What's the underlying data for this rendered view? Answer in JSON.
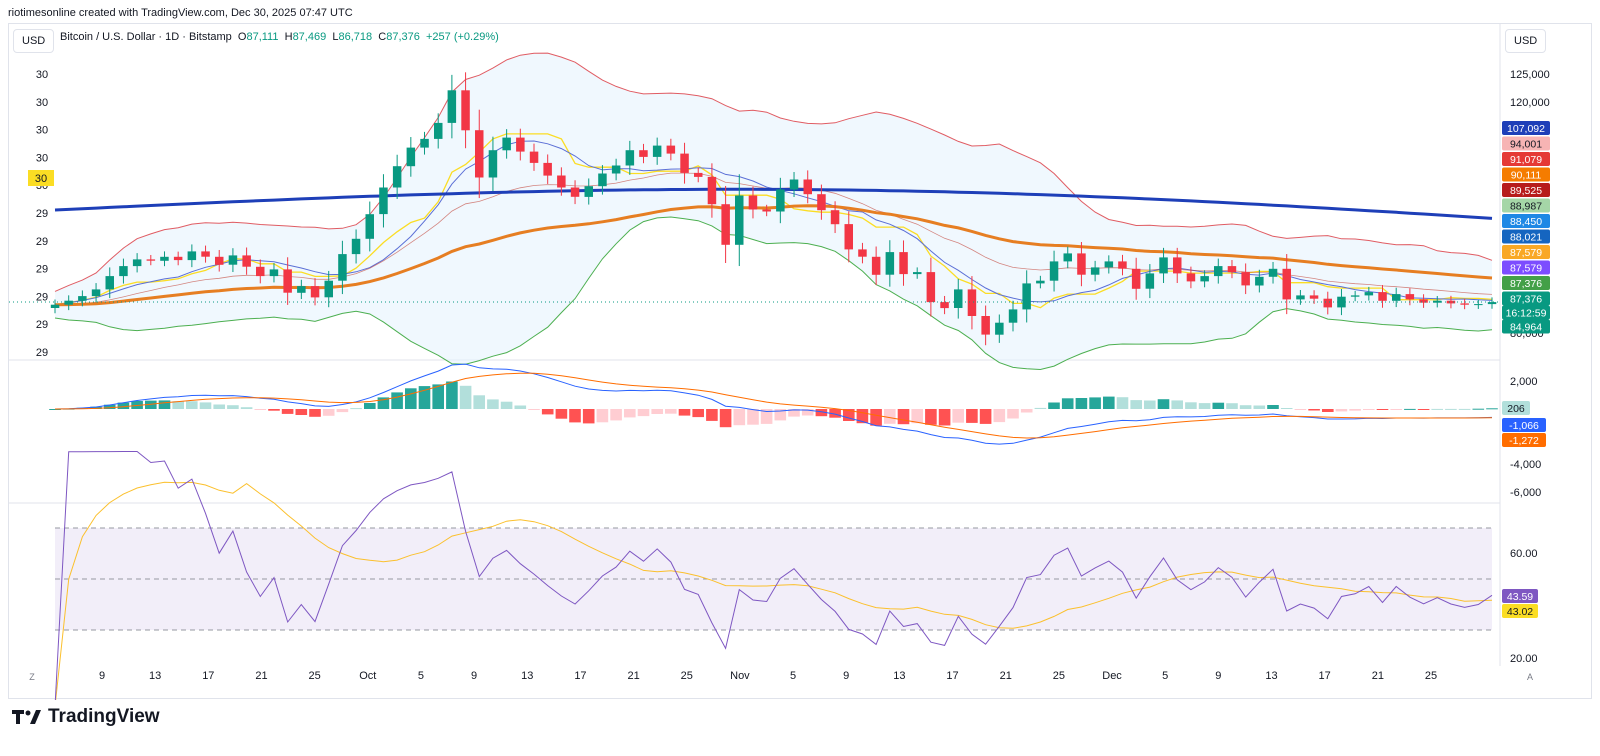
{
  "caption": "riotimesonline created with TradingView.com, Dec 30, 2025 07:47 UTC",
  "header": {
    "currency_left": "USD",
    "currency_right": "USD",
    "symbol": "Bitcoin / U.S. Dollar · 1D · Bitstamp",
    "open_label": "O",
    "open": "87,111",
    "high_label": "H",
    "high": "87,469",
    "low_label": "L",
    "low": "86,718",
    "close_label": "C",
    "close": "87,376",
    "change": "+257 (+0.29%)"
  },
  "brand": "TradingView",
  "colors": {
    "up": "#089981",
    "down": "#f23645",
    "sma_long": "#1e3fb8",
    "ema_mid": "#e67e22",
    "bb_upper": "#e05c63",
    "bb_lower": "#4caf50",
    "tenkan": "#fbdd24",
    "rsi": "#7e57c2"
  },
  "chart_data": {
    "type": "candlestick",
    "x_ticks": [
      "9",
      "13",
      "17",
      "21",
      "25",
      "Oct",
      "5",
      "9",
      "13",
      "17",
      "21",
      "25",
      "Nov",
      "5",
      "9",
      "13",
      "17",
      "21",
      "25",
      "Dec",
      "5",
      "9",
      "13",
      "17",
      "21",
      "25"
    ],
    "left_axis_ticks": [
      "30",
      "30",
      "30",
      "30",
      "30",
      "29",
      "29",
      "29",
      "29",
      "29",
      "29"
    ],
    "left_axis_marker": "30",
    "price_axis_ticks": [
      "125,000",
      "120,000",
      "80,000"
    ],
    "price_labels": [
      {
        "value": "107,092",
        "color": "#1e3fb8"
      },
      {
        "value": "94,001",
        "color": "#f7b4b4"
      },
      {
        "value": "91,079",
        "color": "#e53935"
      },
      {
        "value": "90,111",
        "color": "#f57c00"
      },
      {
        "value": "89,525",
        "color": "#b71c1c"
      },
      {
        "value": "88,987",
        "color": "#a5d6a7"
      },
      {
        "value": "88,450",
        "color": "#1e88e5"
      },
      {
        "value": "88,021",
        "color": "#1565c0"
      },
      {
        "value": "87,579",
        "color": "#f9a825"
      },
      {
        "value": "87,579",
        "color": "#7c4dff"
      },
      {
        "value": "87,376",
        "color": "#43a047"
      },
      {
        "value": "87,376",
        "color": "#089981"
      },
      {
        "value": "16:12:59",
        "color": "#089981"
      },
      {
        "value": "84,964",
        "color": "#089981"
      }
    ],
    "closes": [
      87.0,
      87.6,
      88.3,
      89.3,
      91.3,
      92.8,
      93.8,
      93.6,
      94.2,
      93.7,
      95.0,
      94.2,
      93.0,
      94.4,
      92.7,
      91.3,
      92.3,
      88.8,
      89.8,
      88.1,
      90.6,
      94.6,
      96.9,
      100.6,
      104.6,
      107.8,
      110.6,
      111.9,
      114.3,
      119.2,
      113.2,
      106.1,
      110.2,
      112.1,
      110.0,
      108.3,
      106.4,
      104.6,
      103.2,
      104.8,
      106.7,
      107.9,
      110.2,
      109.2,
      110.9,
      109.7,
      106.8,
      106.2,
      102.1,
      96.0,
      103.4,
      101.3,
      101.0,
      104.3,
      105.8,
      103.6,
      101.2,
      99.1,
      95.3,
      94.2,
      91.5,
      94.9,
      91.6,
      91.9,
      87.4,
      86.5,
      89.3,
      85.3,
      82.5,
      84.3,
      86.3,
      90.2,
      90.6,
      93.5,
      94.7,
      91.5,
      92.6,
      93.5,
      92.4,
      89.4,
      91.7,
      94.1,
      91.7,
      90.5,
      91.3,
      92.8,
      91.9,
      89.9,
      91.2,
      92.4,
      87.8,
      88.4,
      87.9,
      86.6,
      88.2,
      88.4,
      88.9,
      87.6,
      88.6,
      87.8,
      87.3,
      87.6,
      87.2,
      87.0,
      87.1,
      87.4
    ],
    "sma_long_last": 107092,
    "macd": {
      "axis_ticks": [
        "2,000",
        "-4,000",
        "-6,000"
      ],
      "histogram_last": "206",
      "macd_last": "-1,066",
      "signal_last": "-1,272"
    },
    "rsi": {
      "axis_ticks": [
        "60.00",
        "20.00"
      ],
      "rsi_last": "43.59",
      "ma_last": "43.02"
    },
    "time_zone_label": "Z",
    "auto_label": "A"
  }
}
